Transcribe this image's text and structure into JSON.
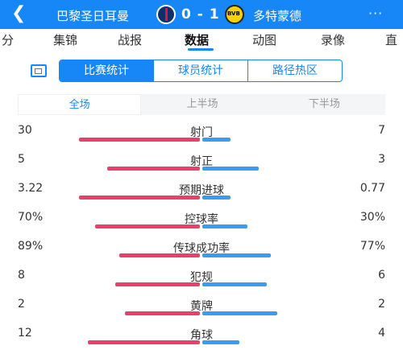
{
  "header": {
    "back_icon": "chevron-left-icon",
    "home_team": "巴黎圣日耳曼",
    "away_team": "多特蒙德",
    "score": "0 - 1",
    "home_crest": "psg-crest-icon",
    "away_crest": "bvb-crest-icon",
    "more_label": "···",
    "colors": {
      "header_bg": "#1787f7",
      "home_bar": "#e83f6f",
      "away_bar": "#3a9cf0"
    }
  },
  "tabs": [
    "分",
    "集锦",
    "战报",
    "数据",
    "动图",
    "录像",
    "直"
  ],
  "active_tab": "数据",
  "segments": [
    "比赛统计",
    "球员统计",
    "路径热区"
  ],
  "active_segment": "比赛统计",
  "periods": [
    "全场",
    "上半场",
    "下半场"
  ],
  "active_period": "全场",
  "stats": [
    {
      "label": "射门",
      "left": "30",
      "right": "7",
      "left_share": 0.81,
      "right_share": 0.19
    },
    {
      "label": "射正",
      "left": "5",
      "right": "3",
      "left_share": 0.62,
      "right_share": 0.38
    },
    {
      "label": "预期进球",
      "left": "3.22",
      "right": "0.77",
      "left_share": 0.81,
      "right_share": 0.19
    },
    {
      "label": "控球率",
      "left": "70%",
      "right": "30%",
      "left_share": 0.7,
      "right_share": 0.3
    },
    {
      "label": "传球成功率",
      "left": "89%",
      "right": "77%",
      "left_share": 0.54,
      "right_share": 0.46
    },
    {
      "label": "犯规",
      "left": "8",
      "right": "6",
      "left_share": 0.57,
      "right_share": 0.43
    },
    {
      "label": "黄牌",
      "left": "2",
      "right": "2",
      "left_share": 0.5,
      "right_share": 0.5
    },
    {
      "label": "角球",
      "left": "12",
      "right": "4",
      "left_share": 0.75,
      "right_share": 0.25
    }
  ]
}
